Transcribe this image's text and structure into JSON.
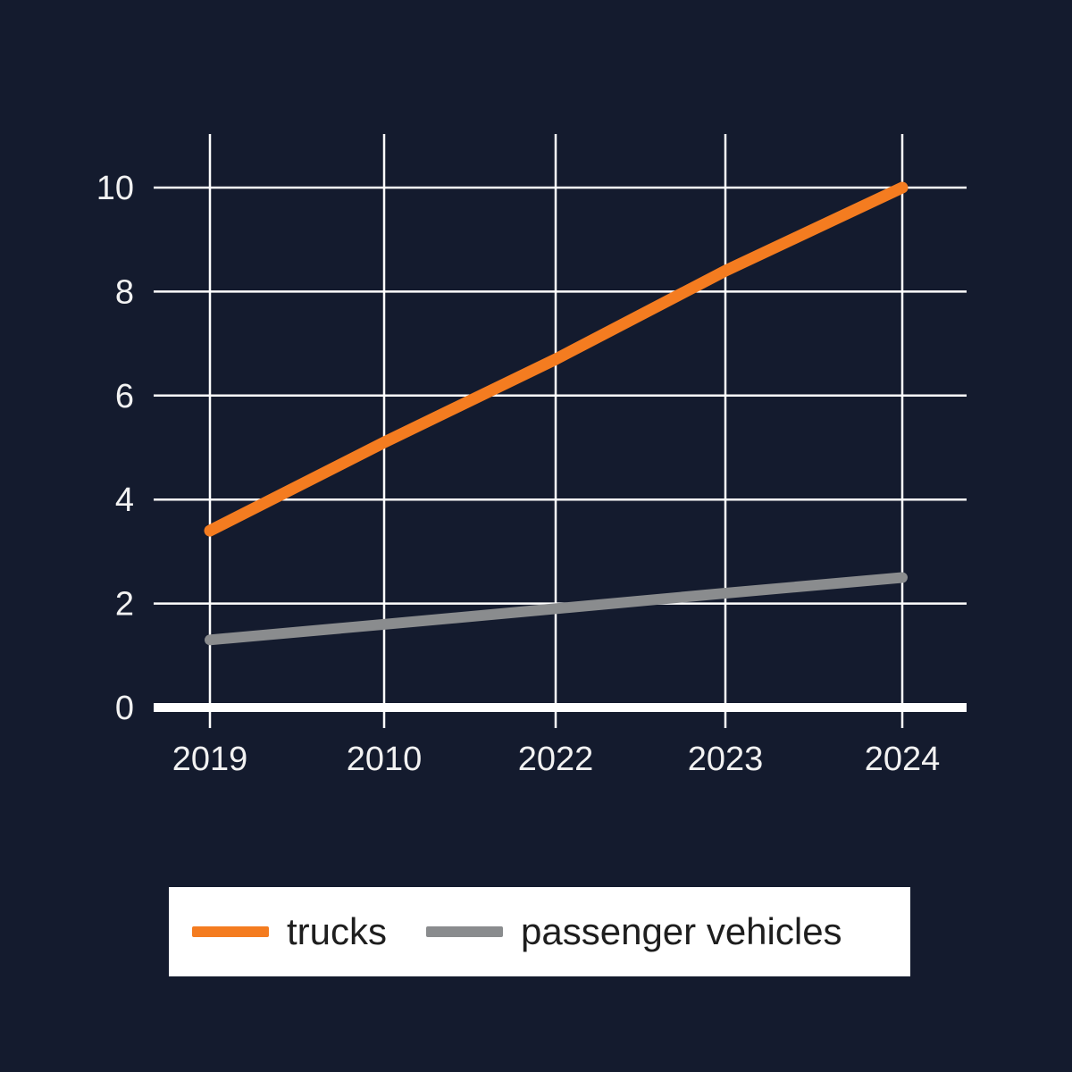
{
  "chart_data": {
    "type": "line",
    "title": "",
    "xlabel": "",
    "ylabel": "",
    "categories": [
      "2019",
      "2010",
      "2022",
      "2023",
      "2024"
    ],
    "yticks": [
      "0",
      "2",
      "4",
      "6",
      "8",
      "10"
    ],
    "ylim": [
      0,
      10
    ],
    "grid": true,
    "legend_position": "bottom-center",
    "background_color": "#141b2e",
    "series": [
      {
        "name": "trucks",
        "color": "#f47c20",
        "values": [
          3.4,
          5.1,
          6.7,
          8.4,
          10.0
        ]
      },
      {
        "name": "passenger vehicles",
        "color": "#8a8c8e",
        "values": [
          1.3,
          1.6,
          1.9,
          2.2,
          2.5
        ]
      }
    ]
  }
}
